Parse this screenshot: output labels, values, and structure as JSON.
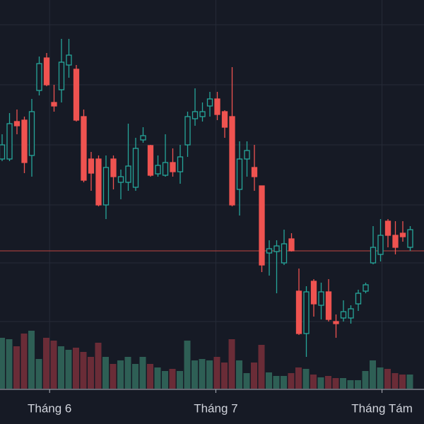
{
  "chart_data": {
    "type": "candlestick",
    "xlim": [
      -0.2857,
      56.857
    ],
    "xticks": [
      {
        "value": 6.4,
        "label": "Tháng 6"
      },
      {
        "value": 28.8,
        "label": "Tháng 7"
      },
      {
        "value": 51.2,
        "label": "Tháng Tám"
      }
    ],
    "ylim": [
      0,
      600
    ],
    "yticks": [
      145,
      228,
      310,
      395,
      480,
      565
    ],
    "grid": true,
    "up_color": "#26a69a",
    "down_color": "#ef5350",
    "volume_up_color": "#2e5f55",
    "volume_down_color": "#6a2c37",
    "open": [
      375,
      375,
      428,
      430,
      380,
      472,
      518,
      455,
      473,
      508,
      502,
      435,
      375,
      375,
      310,
      375,
      342,
      342,
      335,
      402,
      394,
      354,
      352,
      370,
      357,
      395,
      432,
      435,
      450,
      460,
      442,
      435,
      332,
      375,
      363,
      337,
      242,
      244,
      228,
      262,
      188,
      128,
      202,
      168,
      187,
      145,
      150,
      150,
      170,
      188,
      228,
      240,
      287,
      267,
      270,
      250
    ],
    "close": [
      395,
      425,
      422,
      370,
      442,
      510,
      480,
      450,
      512,
      522,
      430,
      345,
      355,
      310,
      363,
      350,
      350,
      365,
      390,
      408,
      352,
      366,
      370,
      357,
      378,
      435,
      442,
      442,
      460,
      438,
      420,
      310,
      375,
      387,
      350,
      225,
      248,
      252,
      255,
      245,
      128,
      187,
      170,
      187,
      148,
      142,
      159,
      163,
      185,
      197,
      250,
      267,
      267,
      250,
      265,
      275
    ],
    "high": [
      410,
      440,
      445,
      435,
      460,
      520,
      525,
      480,
      545,
      545,
      508,
      445,
      385,
      380,
      380,
      380,
      360,
      425,
      405,
      420,
      395,
      380,
      410,
      390,
      395,
      442,
      475,
      455,
      470,
      470,
      444,
      505,
      400,
      400,
      395,
      337,
      260,
      260,
      275,
      270,
      220,
      195,
      205,
      200,
      205,
      155,
      175,
      168,
      190,
      200,
      280,
      290,
      290,
      287,
      287,
      280
    ],
    "low": [
      372,
      372,
      410,
      355,
      350,
      465,
      478,
      442,
      455,
      490,
      428,
      342,
      330,
      308,
      290,
      332,
      318,
      330,
      330,
      398,
      350,
      350,
      350,
      350,
      340,
      378,
      422,
      428,
      435,
      430,
      405,
      308,
      295,
      350,
      330,
      215,
      210,
      185,
      225,
      244,
      126,
      95,
      152,
      148,
      145,
      122,
      145,
      142,
      160,
      185,
      226,
      230,
      250,
      240,
      258,
      245
    ],
    "volume": [
      72,
      70,
      60,
      78,
      82,
      42,
      72,
      68,
      60,
      55,
      58,
      52,
      45,
      65,
      45,
      35,
      40,
      45,
      35,
      45,
      35,
      30,
      25,
      28,
      25,
      68,
      40,
      42,
      40,
      45,
      37,
      70,
      40,
      22,
      37,
      62,
      23,
      18,
      18,
      22,
      30,
      28,
      20,
      16,
      18,
      15,
      15,
      12,
      12,
      25,
      40,
      30,
      28,
      22,
      20,
      20
    ],
    "volume_ylim": [
      0,
      550
    ],
    "price_line": 245,
    "price_line_color": "#c0443f"
  }
}
